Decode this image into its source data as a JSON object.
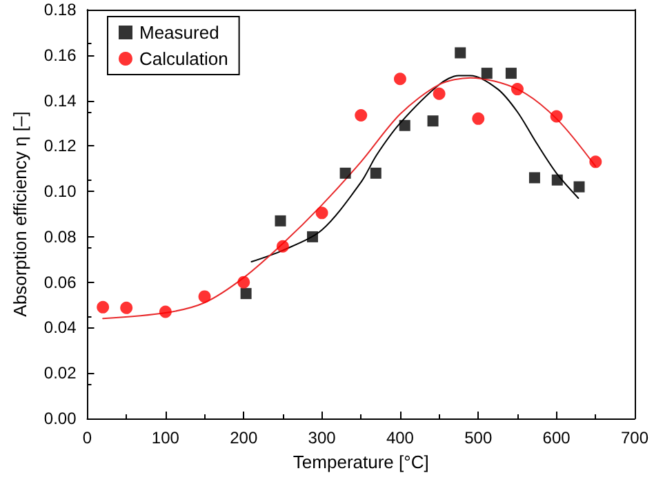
{
  "chart_data": {
    "type": "scatter",
    "xlabel": "Temperature [°C]",
    "ylabel": "Absorption efficiency η [–]",
    "xlim": [
      0,
      700
    ],
    "xticks": [
      0,
      100,
      200,
      300,
      400,
      500,
      600,
      700
    ],
    "ylim": [
      0,
      0.18
    ],
    "yticks": [
      {
        "value": 0,
        "label": "0.00"
      },
      {
        "value": 0.02,
        "label": "0.02"
      },
      {
        "value": 0.04,
        "label": "0.04"
      },
      {
        "value": 0.06,
        "label": "0.06"
      },
      {
        "value": 0.08,
        "label": "0.08"
      },
      {
        "value": 0.1,
        "label": "0.10"
      },
      {
        "value": 0.12,
        "label": "0.12"
      },
      {
        "value": 0.14,
        "label": "0.14"
      },
      {
        "value": 0.16,
        "label": "0.16"
      },
      {
        "value": 0.18,
        "label": "0.18"
      }
    ],
    "grid": false,
    "legend": "top left",
    "series": [
      {
        "type": "line",
        "color": "#000000",
        "marker": "none",
        "line_style": "solid",
        "x": [
          210,
          250,
          300,
          350,
          370,
          400,
          450,
          475,
          490,
          525,
          550,
          575,
          600,
          628
        ],
        "values": [
          0.069,
          0.074,
          0.083,
          0.104,
          0.116,
          0.13,
          0.147,
          0.151,
          0.151,
          0.145,
          0.135,
          0.121,
          0.108,
          0.097
        ]
      },
      {
        "type": "line",
        "color": "#e8292b",
        "marker": "none",
        "line_style": "solid",
        "x": [
          20,
          100,
          150,
          200,
          250,
          300,
          350,
          400,
          450,
          490,
          550,
          600,
          650
        ],
        "values": [
          0.044,
          0.0465,
          0.051,
          0.062,
          0.077,
          0.094,
          0.113,
          0.134,
          0.147,
          0.15,
          0.145,
          0.132,
          0.111
        ]
      },
      {
        "name": "Measured",
        "type": "scatter",
        "color": "#000000",
        "marker": "square",
        "x": [
          203,
          247,
          288,
          330,
          369,
          406,
          442,
          477,
          511,
          542,
          572,
          601,
          629
        ],
        "values": [
          0.055,
          0.087,
          0.08,
          0.108,
          0.108,
          0.129,
          0.131,
          0.161,
          0.152,
          0.152,
          0.106,
          0.105,
          0.102
        ]
      },
      {
        "name": "Calculation",
        "type": "scatter",
        "color": "#ff0000",
        "marker": "circle",
        "x": [
          20,
          50,
          100,
          150,
          200,
          250,
          300,
          350,
          400,
          450,
          500,
          550,
          600,
          650
        ],
        "values": [
          0.049,
          0.0487,
          0.047,
          0.0537,
          0.06,
          0.0758,
          0.0905,
          0.1335,
          0.1495,
          0.143,
          0.132,
          0.145,
          0.133,
          0.113
        ]
      }
    ]
  }
}
